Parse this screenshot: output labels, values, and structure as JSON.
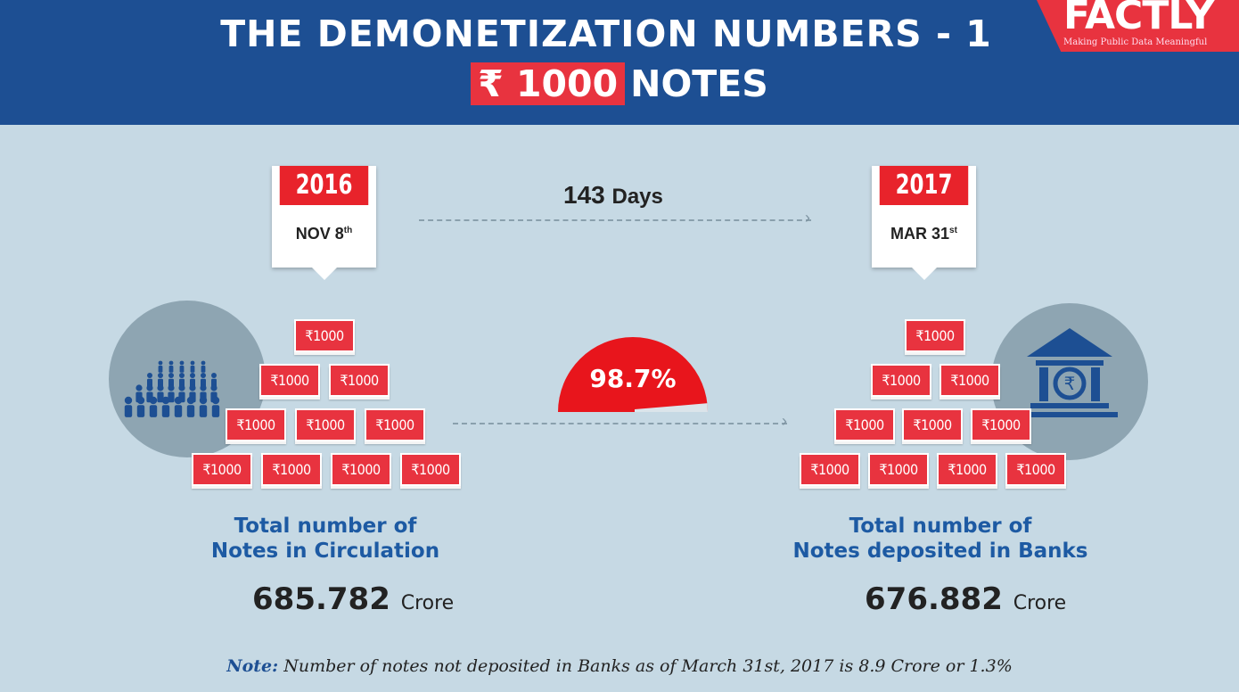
{
  "header": {
    "title": "THE DEMONETIZATION NUMBERS - 1",
    "denomination": "₹ 1000",
    "subtitle_suffix": "NOTES"
  },
  "logo": {
    "name": "FACTLY",
    "tagline": "Making Public Data Meaningful"
  },
  "timeline": {
    "start": {
      "year": "2016",
      "date": "NOV 8",
      "sup": "th"
    },
    "end": {
      "year": "2017",
      "date": "MAR 31",
      "sup": "st"
    },
    "duration_value": "143",
    "duration_unit": "Days"
  },
  "note_label": "₹1000",
  "percent_deposited": {
    "label": "98.7%",
    "value": 98.7
  },
  "left": {
    "label_line1": "Total number of",
    "label_line2": "Notes in Circulation",
    "value": "685.782",
    "unit": "Crore",
    "icon": "people-icon"
  },
  "right": {
    "label_line1": "Total number of",
    "label_line2": "Notes deposited in Banks",
    "value": "676.882",
    "unit": "Crore",
    "icon": "bank-icon"
  },
  "footer": {
    "note_label": "Note:",
    "note_text": "Number of notes not deposited in Banks as of March 31st, 2017 is 8.9 Crore or 1.3%"
  },
  "colors": {
    "header": "#1d4f93",
    "accent": "#e8333f",
    "background": "#c6d9e4"
  }
}
